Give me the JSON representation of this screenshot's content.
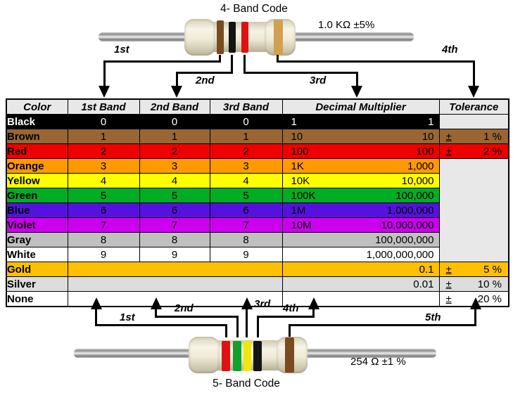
{
  "top_diagram": {
    "title": "4- Band Code",
    "value_label": "1.0 KΩ  ±5%",
    "arrow_labels": [
      "1st",
      "2nd",
      "3rd",
      "4th"
    ],
    "band_colors": [
      "brown",
      "black",
      "red",
      "gold"
    ]
  },
  "bottom_diagram": {
    "title": "5- Band Code",
    "value_label": "254 Ω  ±1 %",
    "arrow_labels": [
      "1st",
      "2nd",
      "3rd",
      "4th",
      "5th"
    ],
    "band_colors": [
      "red",
      "green",
      "yellow",
      "black",
      "brown"
    ]
  },
  "table": {
    "headers": [
      "Color",
      "1st Band",
      "2nd Band",
      "3rd Band",
      "Decimal Multiplier",
      "Tolerance"
    ],
    "plus_minus_sign": "±",
    "rows": [
      {
        "name": "Black",
        "bg": "#000000",
        "fg": "#ffffff",
        "bands": [
          "0",
          "0",
          "0"
        ],
        "mult_short": "1",
        "mult_full": "1",
        "tol": {
          "type": "empty",
          "bg": "#E8E8E8"
        }
      },
      {
        "name": "Brown",
        "bg": "#996633",
        "fg": "#000000",
        "bands": [
          "1",
          "1",
          "1"
        ],
        "mult_short": "10",
        "mult_full": "10",
        "tol": {
          "type": "value",
          "value": "1 %"
        }
      },
      {
        "name": "Red",
        "bg": "#EE0000",
        "fg": "#000000",
        "bands": [
          "2",
          "2",
          "2"
        ],
        "mult_short": "100",
        "mult_full": "100",
        "tol": {
          "type": "value",
          "value": "2 %"
        }
      },
      {
        "name": "Orange",
        "bg": "#FF9900",
        "fg": "#000000",
        "bands": [
          "3",
          "3",
          "3"
        ],
        "mult_short": "1K",
        "mult_full": "1,000",
        "tol": {
          "type": "span",
          "rows": 7,
          "bg": "#E8E8E8"
        }
      },
      {
        "name": "Yellow",
        "bg": "#FFFF00",
        "fg": "#000000",
        "bands": [
          "4",
          "4",
          "4"
        ],
        "mult_short": "10K",
        "mult_full": "10,000",
        "tol": {
          "type": "none"
        }
      },
      {
        "name": "Green",
        "bg": "#00AD25",
        "fg": "#000000",
        "bands": [
          "5",
          "5",
          "5"
        ],
        "mult_short": "100K",
        "mult_full": "100,000",
        "tol": {
          "type": "none"
        }
      },
      {
        "name": "Blue",
        "bg": "#5512DE",
        "fg": "#000000",
        "bands": [
          "6",
          "6",
          "6"
        ],
        "mult_short": "1M",
        "mult_full": "1,000,000",
        "tol": {
          "type": "none"
        }
      },
      {
        "name": "Violet",
        "bg": "#CC00EE",
        "fg": "#000000",
        "bands": [
          "7",
          "7",
          "7"
        ],
        "mult_short": "10M",
        "mult_full": "10,000,000",
        "tol": {
          "type": "none"
        }
      },
      {
        "name": "Gray",
        "bg": "#C0C0C0",
        "fg": "#000000",
        "bands": [
          "8",
          "8",
          "8"
        ],
        "mult_short": "",
        "mult_full": "100,000,000",
        "tol": {
          "type": "none"
        }
      },
      {
        "name": "White",
        "bg": "#FFFFFF",
        "fg": "#000000",
        "bands": [
          "9",
          "9",
          "9"
        ],
        "mult_short": "",
        "mult_full": "1,000,000,000",
        "tol": {
          "type": "none"
        }
      },
      {
        "name": "Gold",
        "bg": "#FFC000",
        "fg": "#000000",
        "bands_merged": true,
        "mult_short": "",
        "mult_full": "0.1",
        "tol": {
          "type": "value",
          "value": "5 %"
        }
      },
      {
        "name": "Silver",
        "bg": "#DDDDDD",
        "fg": "#000000",
        "bands_merged": true,
        "mult_short": "",
        "mult_full": "0.01",
        "tol": {
          "type": "value",
          "value": "10 %"
        }
      },
      {
        "name": "None",
        "bg": "#FFFFFF",
        "fg": "#000000",
        "bands_merged": true,
        "mult_short": "",
        "mult_full": "",
        "tol": {
          "type": "value",
          "value": "20 %"
        }
      }
    ]
  },
  "band_paint": {
    "brown": "#7A4A21",
    "black": "#141414",
    "red": "#DD1212",
    "gold": "#D2A050",
    "green": "#14A02E",
    "yellow": "#F2E70C"
  }
}
